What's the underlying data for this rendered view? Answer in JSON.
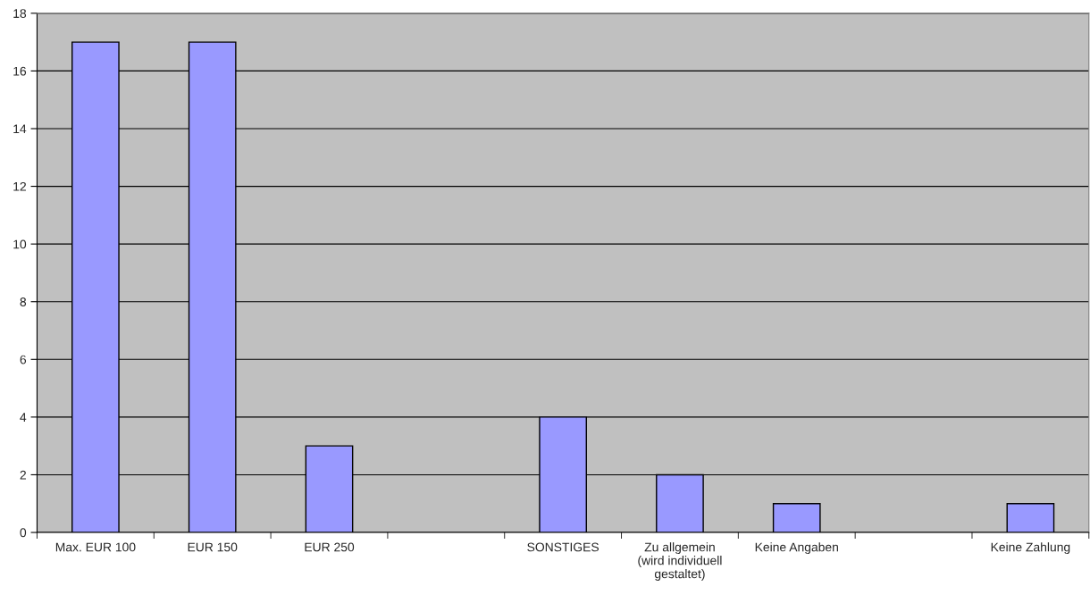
{
  "chart_data": {
    "type": "bar",
    "categories": [
      "Max. EUR 100",
      "EUR 150",
      "EUR 250",
      null,
      "SONSTIGES",
      "Zu allgemein\n(wird individuell\ngestaltet)",
      "Keine Angaben",
      null,
      "Keine Zahlung"
    ],
    "values": [
      17,
      17,
      3,
      null,
      4,
      2,
      1,
      null,
      1
    ],
    "color": "#9999ff",
    "ylim": [
      0,
      18
    ],
    "yticks": [
      0,
      2,
      4,
      6,
      8,
      10,
      12,
      14,
      16,
      18
    ],
    "grid": "y",
    "legend": false
  }
}
